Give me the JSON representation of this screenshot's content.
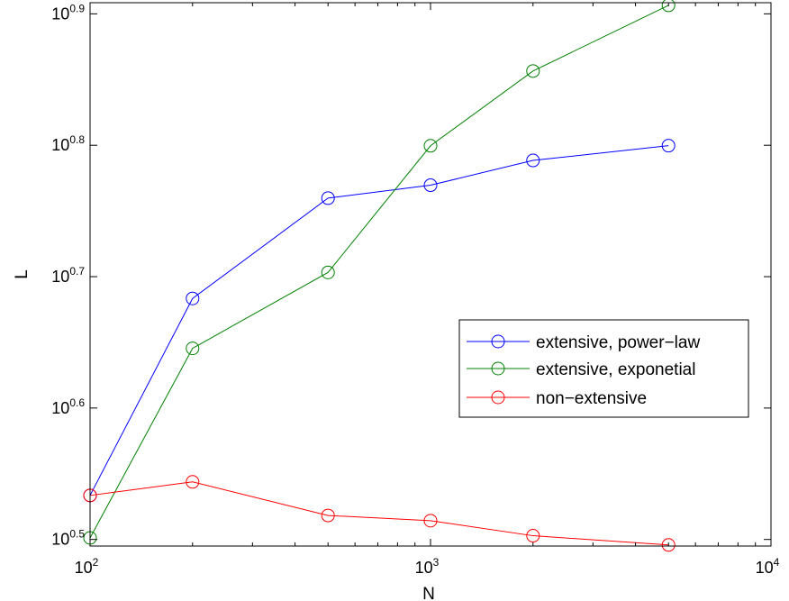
{
  "chart_data": {
    "type": "line",
    "xlabel": "N",
    "ylabel": "L",
    "x_scale": "log",
    "y_scale": "log",
    "xlim": [
      100,
      10000
    ],
    "ylim": [
      3.126,
      8.1
    ],
    "x_ticks": [
      {
        "value": 100,
        "base": "10",
        "exp": "2"
      },
      {
        "value": 1000,
        "base": "10",
        "exp": "3"
      },
      {
        "value": 10000,
        "base": "10",
        "exp": "4"
      }
    ],
    "y_ticks": [
      {
        "value": 3.1623,
        "base": "10",
        "exp": "0.5"
      },
      {
        "value": 3.9811,
        "base": "10",
        "exp": "0.6"
      },
      {
        "value": 5.0119,
        "base": "10",
        "exp": "0.7"
      },
      {
        "value": 6.3096,
        "base": "10",
        "exp": "0.8"
      },
      {
        "value": 7.9433,
        "base": "10",
        "exp": "0.9"
      }
    ],
    "x": [
      100,
      200,
      500,
      1000,
      2000,
      5000
    ],
    "series": [
      {
        "name": "extensive, power−law",
        "color": "#0000ff",
        "marker": "circle",
        "values": [
          3.416,
          4.824,
          5.751,
          5.883,
          6.144,
          6.305
        ]
      },
      {
        "name": "extensive, exponetial",
        "color": "#008000",
        "marker": "circle",
        "values": [
          3.171,
          4.42,
          5.049,
          6.304,
          7.186,
          8.063
        ]
      },
      {
        "name": "non−extensive",
        "color": "#ff0000",
        "marker": "circle",
        "values": [
          3.416,
          3.498,
          3.298,
          3.268,
          3.183,
          3.132
        ]
      }
    ],
    "legend_position": "right-middle",
    "grid": false
  }
}
